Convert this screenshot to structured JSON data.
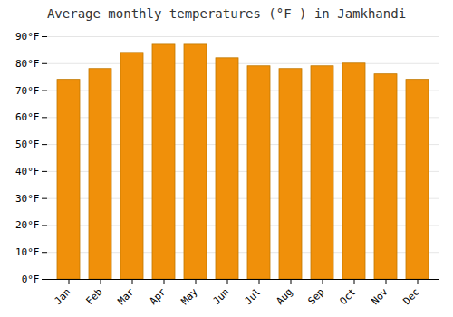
{
  "chart_data": {
    "type": "bar",
    "title": "Average monthly temperatures (°F ) in Jamkhandi",
    "categories": [
      "Jan",
      "Feb",
      "Mar",
      "Apr",
      "May",
      "Jun",
      "Jul",
      "Aug",
      "Sep",
      "Oct",
      "Nov",
      "Dec"
    ],
    "values": [
      74,
      78,
      84,
      87,
      87,
      82,
      79,
      78,
      79,
      80,
      76,
      74
    ],
    "color": "#F0900A",
    "ylim": [
      0,
      90
    ],
    "yticks": [
      {
        "value": 0,
        "label": "0°F"
      },
      {
        "value": 10,
        "label": "10°F"
      },
      {
        "value": 20,
        "label": "20°F"
      },
      {
        "value": 30,
        "label": "30°F"
      },
      {
        "value": 40,
        "label": "40°F"
      },
      {
        "value": 50,
        "label": "50°F"
      },
      {
        "value": 60,
        "label": "60°F"
      },
      {
        "value": 70,
        "label": "70°F"
      },
      {
        "value": 80,
        "label": "80°F"
      },
      {
        "value": 90,
        "label": "90°F"
      }
    ],
    "grid": true
  }
}
